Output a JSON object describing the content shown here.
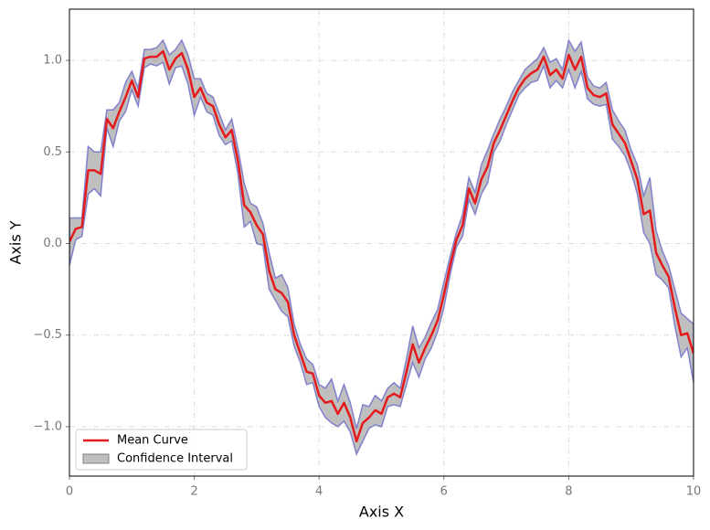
{
  "chart_data": {
    "type": "line",
    "xlabel": "Axis X",
    "ylabel": "Axis Y",
    "xlim": [
      0,
      10
    ],
    "ylim": [
      -1.27,
      1.28
    ],
    "xticks": [
      0,
      2,
      4,
      6,
      8,
      10
    ],
    "yticks": [
      {
        "value": -1,
        "label": "−1.0"
      },
      {
        "value": -0.5,
        "label": "−0.5"
      },
      {
        "value": 0,
        "label": "0.0"
      },
      {
        "value": 0.5,
        "label": "0.5"
      },
      {
        "value": 1,
        "label": "1.0"
      }
    ],
    "grid": true,
    "legend": "lower left",
    "x": [
      0,
      0.1,
      0.2,
      0.3,
      0.4,
      0.5,
      0.6,
      0.7,
      0.8,
      0.9,
      1,
      1.1,
      1.2,
      1.3,
      1.4,
      1.5,
      1.6,
      1.7,
      1.8,
      1.9,
      2,
      2.1,
      2.2,
      2.3,
      2.4,
      2.5,
      2.6,
      2.7,
      2.8,
      2.9,
      3,
      3.1,
      3.2,
      3.3,
      3.4,
      3.5,
      3.6,
      3.7,
      3.8,
      3.9,
      4,
      4.1,
      4.2,
      4.3,
      4.4,
      4.5,
      4.6,
      4.7,
      4.8,
      4.9,
      5,
      5.1,
      5.2,
      5.3,
      5.4,
      5.5,
      5.6,
      5.7,
      5.8,
      5.9,
      6,
      6.1,
      6.2,
      6.3,
      6.4,
      6.5,
      6.6,
      6.7,
      6.8,
      6.9,
      7,
      7.1,
      7.2,
      7.3,
      7.4,
      7.5,
      7.6,
      7.7,
      7.8,
      7.9,
      8,
      8.1,
      8.2,
      8.3,
      8.4,
      8.5,
      8.6,
      8.7,
      8.8,
      8.9,
      9,
      9.1,
      9.2,
      9.3,
      9.4,
      9.5,
      9.6,
      9.7,
      9.8,
      9.9,
      10
    ],
    "series": [
      {
        "name": "Mean Curve",
        "color": "#e41a1c",
        "values": [
          0.01,
          0.08,
          0.09,
          0.4,
          0.4,
          0.38,
          0.68,
          0.63,
          0.72,
          0.8,
          0.89,
          0.8,
          1.01,
          1.02,
          1.02,
          1.05,
          0.95,
          1.01,
          1.04,
          0.95,
          0.8,
          0.85,
          0.77,
          0.75,
          0.65,
          0.58,
          0.62,
          0.45,
          0.21,
          0.17,
          0.1,
          0.05,
          -0.15,
          -0.25,
          -0.27,
          -0.32,
          -0.5,
          -0.6,
          -0.7,
          -0.71,
          -0.83,
          -0.87,
          -0.86,
          -0.93,
          -0.87,
          -0.95,
          -1.08,
          -0.98,
          -0.95,
          -0.91,
          -0.93,
          -0.84,
          -0.82,
          -0.84,
          -0.7,
          -0.55,
          -0.65,
          -0.57,
          -0.5,
          -0.42,
          -0.28,
          -0.12,
          0.02,
          0.1,
          0.3,
          0.22,
          0.35,
          0.42,
          0.55,
          0.62,
          0.7,
          0.78,
          0.85,
          0.9,
          0.93,
          0.95,
          1.02,
          0.92,
          0.95,
          0.9,
          1.03,
          0.95,
          1.02,
          0.85,
          0.81,
          0.8,
          0.82,
          0.65,
          0.6,
          0.55,
          0.45,
          0.35,
          0.16,
          0.18,
          -0.05,
          -0.12,
          -0.18,
          -0.35,
          -0.5,
          -0.49,
          -0.6
        ],
        "errors": [
          0.13,
          0.06,
          0.05,
          0.13,
          0.1,
          0.12,
          0.05,
          0.1,
          0.05,
          0.08,
          0.05,
          0.05,
          0.05,
          0.04,
          0.05,
          0.06,
          0.08,
          0.05,
          0.07,
          0.08,
          0.1,
          0.05,
          0.05,
          0.05,
          0.06,
          0.04,
          0.06,
          0.07,
          0.12,
          0.05,
          0.1,
          0.06,
          0.1,
          0.06,
          0.1,
          0.08,
          0.06,
          0.05,
          0.07,
          0.05,
          0.06,
          0.08,
          0.12,
          0.07,
          0.1,
          0.08,
          0.07,
          0.1,
          0.06,
          0.08,
          0.07,
          0.05,
          0.06,
          0.05,
          0.07,
          0.1,
          0.08,
          0.06,
          0.07,
          0.06,
          0.07,
          0.05,
          0.04,
          0.06,
          0.06,
          0.06,
          0.08,
          0.09,
          0.05,
          0.06,
          0.05,
          0.05,
          0.04,
          0.05,
          0.05,
          0.06,
          0.05,
          0.07,
          0.06,
          0.05,
          0.08,
          0.1,
          0.08,
          0.06,
          0.05,
          0.05,
          0.06,
          0.08,
          0.07,
          0.07,
          0.06,
          0.08,
          0.1,
          0.18,
          0.12,
          0.08,
          0.06,
          0.1,
          0.12,
          0.08,
          0.16
        ]
      }
    ],
    "band": {
      "name": "Confidence Interval",
      "color": "#808080",
      "edge_color": "#6a6acb"
    }
  }
}
